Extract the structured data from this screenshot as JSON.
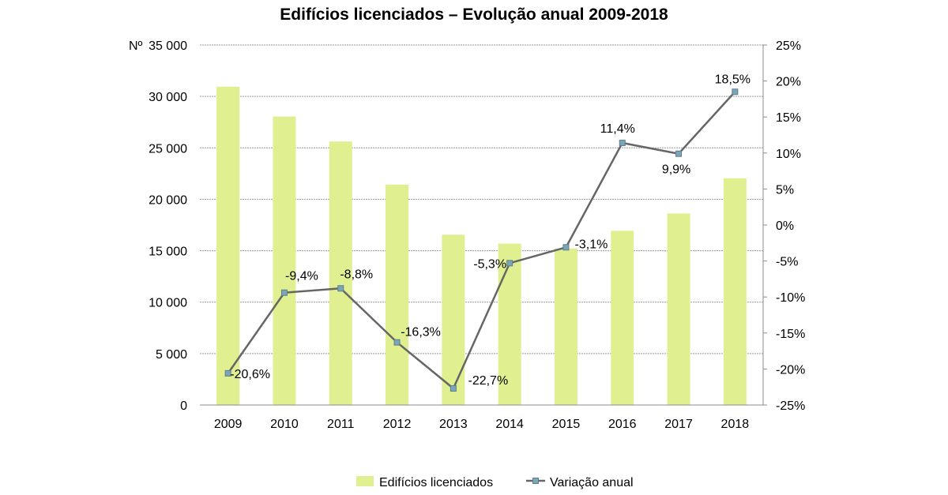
{
  "chart_data": {
    "type": "bar",
    "title": "Edifícios licenciados – Evolução anual 2009-2018",
    "left_axis_label": "Nº",
    "categories": [
      "2009",
      "2010",
      "2011",
      "2012",
      "2013",
      "2014",
      "2015",
      "2016",
      "2017",
      "2018"
    ],
    "series": [
      {
        "name": "Edifícios licenciados",
        "type": "bar",
        "axis": "left",
        "color": "#e0ef8f",
        "values": [
          30950,
          28050,
          25620,
          21430,
          16560,
          15690,
          15220,
          16940,
          18620,
          22040
        ]
      },
      {
        "name": "Variação anual",
        "type": "line",
        "axis": "right",
        "color": "#666666",
        "marker_color": "#7aa6b8",
        "values": [
          -20.6,
          -9.4,
          -8.8,
          -16.3,
          -22.7,
          -5.3,
          -3.1,
          11.4,
          9.9,
          18.5
        ],
        "labels": [
          "-20,6%",
          "-9,4%",
          "-8,8%",
          "-16,3%",
          "-22,7%",
          "-5,3%",
          "-3,1%",
          "11,4%",
          "9,9%",
          "18,5%"
        ]
      }
    ],
    "y_left": {
      "min": 0,
      "max": 35000,
      "step": 5000,
      "tick_labels": [
        "0",
        "5 000",
        "10 000",
        "15 000",
        "20 000",
        "25 000",
        "30 000",
        "35 000"
      ]
    },
    "y_right": {
      "min": -25,
      "max": 25,
      "step": 5,
      "tick_labels": [
        "-25%",
        "-20%",
        "-15%",
        "-10%",
        "-5%",
        "0%",
        "5%",
        "10%",
        "15%",
        "20%",
        "25%"
      ]
    },
    "grid": true,
    "legend_position": "bottom"
  }
}
